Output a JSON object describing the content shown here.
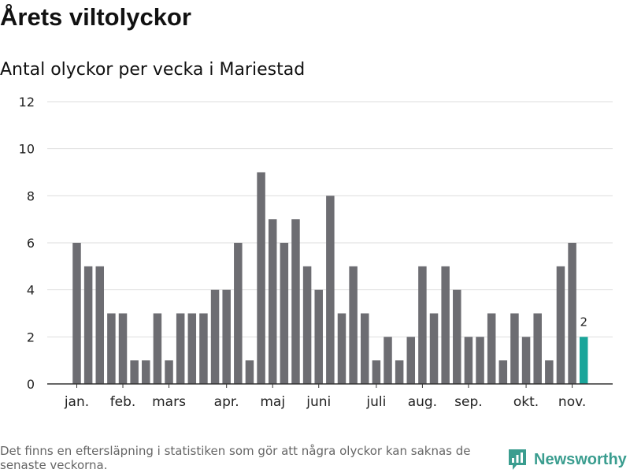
{
  "header": {
    "title": "Årets viltolyckor",
    "subtitle": "Antal olyckor per vecka i Mariestad"
  },
  "chart_data": {
    "type": "bar",
    "title": "Årets viltolyckor",
    "subtitle": "Antal olyckor per vecka i Mariestad",
    "xlabel": "",
    "ylabel": "",
    "ylim": [
      0,
      12
    ],
    "yticks": [
      0,
      2,
      4,
      6,
      8,
      10,
      12
    ],
    "grid": true,
    "month_labels": [
      {
        "label": "jan.",
        "week": 1
      },
      {
        "label": "feb.",
        "week": 5
      },
      {
        "label": "mars",
        "week": 9
      },
      {
        "label": "apr.",
        "week": 14
      },
      {
        "label": "maj",
        "week": 18
      },
      {
        "label": "juni",
        "week": 22
      },
      {
        "label": "juli",
        "week": 27
      },
      {
        "label": "aug.",
        "week": 31
      },
      {
        "label": "sep.",
        "week": 35
      },
      {
        "label": "okt.",
        "week": 40
      },
      {
        "label": "nov.",
        "week": 44
      }
    ],
    "series": [
      {
        "name": "Antal olyckor",
        "values": [
          6,
          5,
          5,
          3,
          3,
          1,
          1,
          3,
          1,
          3,
          3,
          3,
          4,
          4,
          6,
          1,
          9,
          7,
          6,
          7,
          5,
          4,
          8,
          3,
          5,
          3,
          1,
          2,
          1,
          2,
          5,
          3,
          5,
          4,
          2,
          2,
          3,
          1,
          3,
          2,
          3,
          1,
          5,
          6,
          2
        ]
      }
    ],
    "highlight_last": true,
    "annotation": "2",
    "colors": {
      "bar": "#6d6d72",
      "highlight": "#1aa59a",
      "grid": "#dddddd",
      "axis": "#333333"
    }
  },
  "footer": {
    "note": "Det finns en eftersläpning i statistiken som gör att några olyckor kan saknas de senaste veckorna.",
    "brand": "Newsworthy",
    "brand_icon": "newsworthy-logo-icon",
    "brand_color": "#3a9d8f"
  }
}
